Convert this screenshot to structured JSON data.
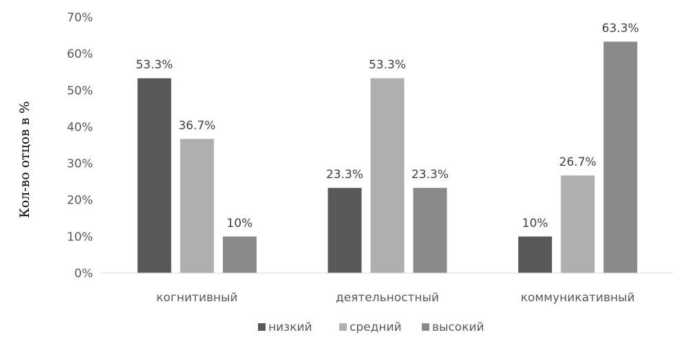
{
  "chart_data": {
    "type": "bar",
    "title": "",
    "xlabel": "",
    "ylabel": "Кол-во отцов в %",
    "ylim": [
      0,
      70
    ],
    "yticks": [
      "0%",
      "10%",
      "20%",
      "30%",
      "40%",
      "50%",
      "60%",
      "70%"
    ],
    "grid": false,
    "legend_position": "bottom",
    "categories": [
      "когнитивный",
      "деятельностный",
      "коммуникативный"
    ],
    "series": [
      {
        "name": "низкий",
        "color": "#595959",
        "values": [
          53.3,
          23.3,
          10
        ],
        "labels": [
          "53.3%",
          "23.3%",
          "10%"
        ]
      },
      {
        "name": "средний",
        "color": "#afafaf",
        "values": [
          36.7,
          53.3,
          26.7
        ],
        "labels": [
          "36.7%",
          "53.3%",
          "26.7%"
        ]
      },
      {
        "name": "высокий",
        "color": "#8a8a8a",
        "values": [
          10,
          23.3,
          63.3
        ],
        "labels": [
          "10%",
          "23.3%",
          "63.3%"
        ]
      }
    ]
  }
}
